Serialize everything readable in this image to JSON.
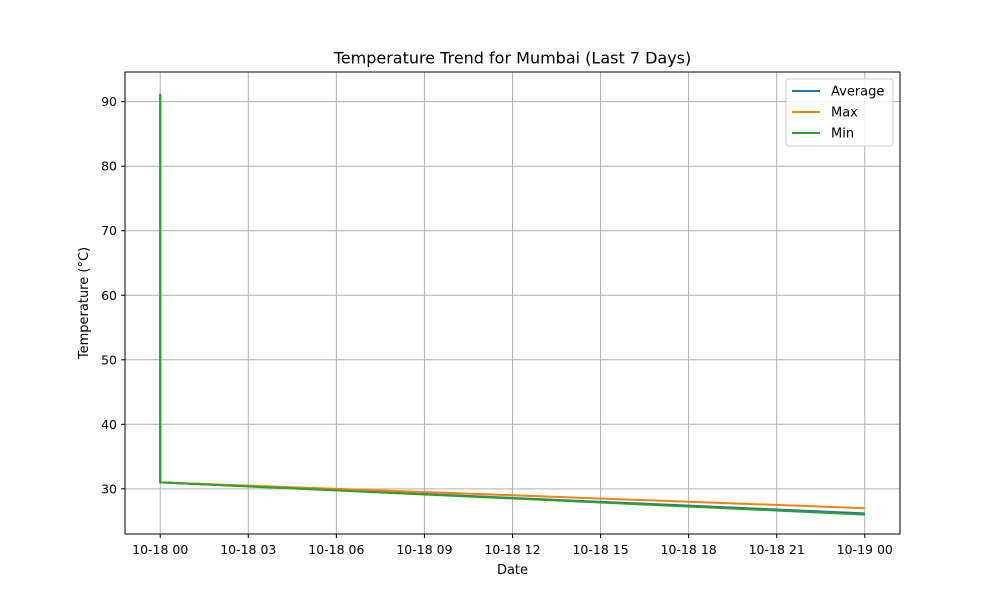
{
  "chart_data": {
    "type": "line",
    "title": "Temperature Trend for Mumbai (Last 7 Days)",
    "xlabel": "Date",
    "ylabel": "Temperature (°C)",
    "x_tick_labels": [
      "10-18 00",
      "10-18 03",
      "10-18 06",
      "10-18 09",
      "10-18 12",
      "10-18 15",
      "10-18 18",
      "10-18 21",
      "10-19 00"
    ],
    "x_hours": [
      0,
      3,
      6,
      9,
      12,
      15,
      18,
      21,
      24
    ],
    "y_ticks": [
      30,
      40,
      50,
      60,
      70,
      80,
      90
    ],
    "xlim": [
      -1.2,
      25.2
    ],
    "ylim": [
      23.0,
      94.6
    ],
    "grid": true,
    "legend_position": "top-right",
    "series": [
      {
        "name": "Average",
        "color": "#1f77b4",
        "x": [
          0,
          0,
          24
        ],
        "y": [
          91.2,
          31.0,
          26.2
        ]
      },
      {
        "name": "Max",
        "color": "#ff7f0e",
        "x": [
          0,
          0,
          24
        ],
        "y": [
          91.2,
          31.0,
          27.0
        ]
      },
      {
        "name": "Min",
        "color": "#2ca02c",
        "x": [
          0,
          0,
          24
        ],
        "y": [
          91.2,
          31.0,
          26.0
        ]
      }
    ]
  }
}
